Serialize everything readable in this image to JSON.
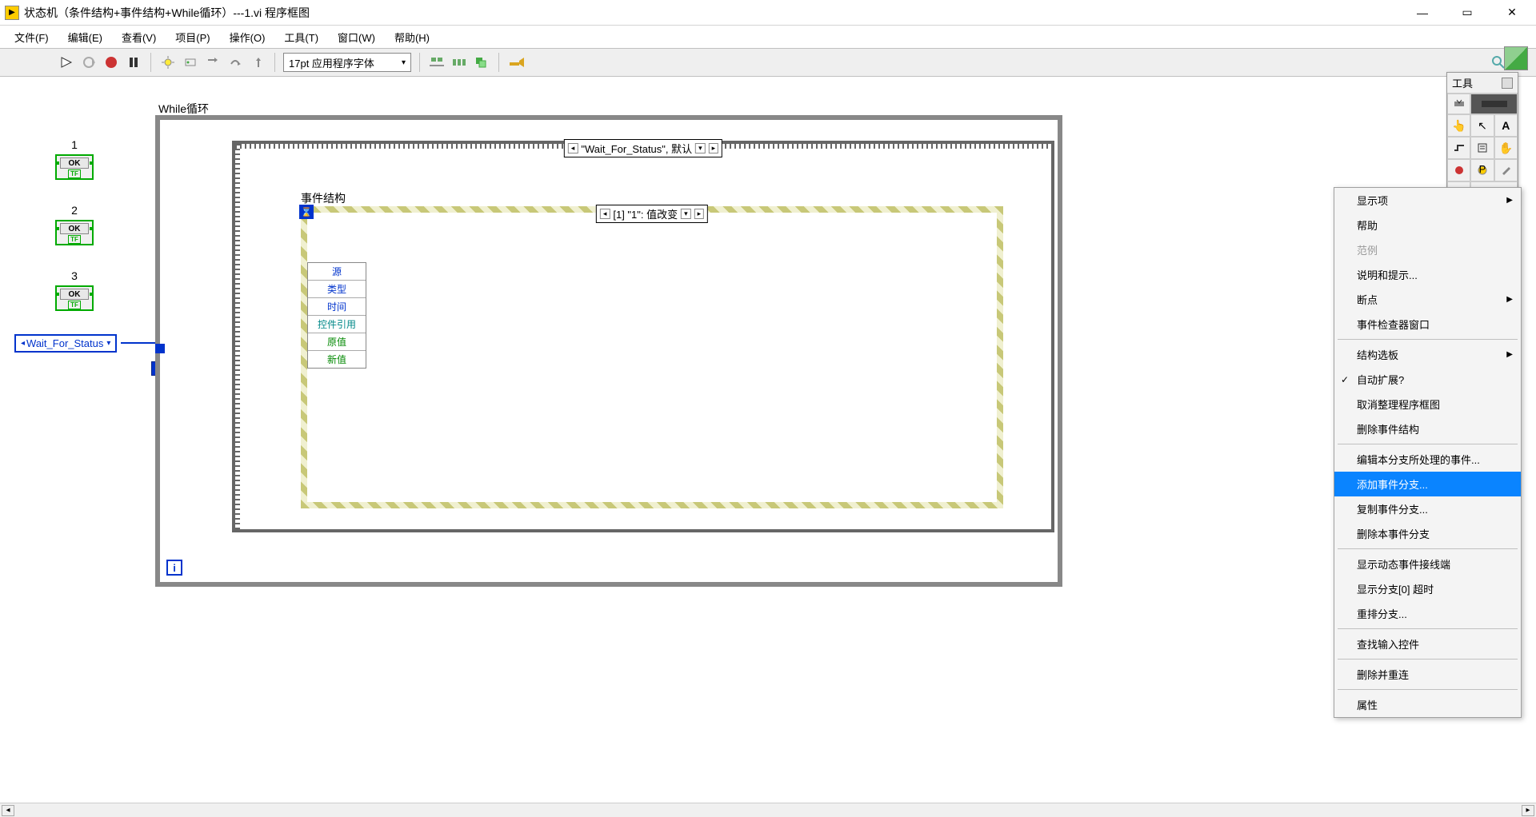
{
  "window": {
    "title": "状态机（条件结构+事件结构+While循环）---1.vi 程序框图",
    "min_btn": "—",
    "max_btn": "▭",
    "close_btn": "✕"
  },
  "menu": {
    "file": "文件(F)",
    "edit": "编辑(E)",
    "view": "查看(V)",
    "project": "项目(P)",
    "operate": "操作(O)",
    "tools": "工具(T)",
    "window": "窗口(W)",
    "help": "帮助(H)"
  },
  "toolbar": {
    "font_label": "17pt 应用程序字体"
  },
  "controls": {
    "items": [
      {
        "num": "1",
        "label": "OK"
      },
      {
        "num": "2",
        "label": "OK"
      },
      {
        "num": "3",
        "label": "OK"
      }
    ]
  },
  "enum_const": {
    "text": "Wait_For_Status"
  },
  "while_loop": {
    "label": "While循环",
    "i_label": "i"
  },
  "case_struct": {
    "selector_text": "\"Wait_For_Status\", 默认"
  },
  "event_struct": {
    "label": "事件结构",
    "timeout_glyph": "⌛",
    "selector_text": "[1] \"1\": 值改变",
    "data_rows": [
      {
        "text": "源",
        "cls": "row-blue"
      },
      {
        "text": "类型",
        "cls": "row-blue"
      },
      {
        "text": "时间",
        "cls": "row-blue"
      },
      {
        "text": "控件引用",
        "cls": "row-teal"
      },
      {
        "text": "原值",
        "cls": "row-green"
      },
      {
        "text": "新值",
        "cls": "row-green"
      }
    ]
  },
  "context_menu": {
    "items": [
      {
        "type": "item",
        "label": "显示项",
        "submenu": true
      },
      {
        "type": "item",
        "label": "帮助"
      },
      {
        "type": "item",
        "label": "范例",
        "disabled": true
      },
      {
        "type": "item",
        "label": "说明和提示..."
      },
      {
        "type": "item",
        "label": "断点",
        "submenu": true
      },
      {
        "type": "item",
        "label": "事件检查器窗口"
      },
      {
        "type": "sep"
      },
      {
        "type": "item",
        "label": "结构选板",
        "submenu": true
      },
      {
        "type": "item",
        "label": "自动扩展?",
        "checked": true
      },
      {
        "type": "item",
        "label": "取消整理程序框图"
      },
      {
        "type": "item",
        "label": "删除事件结构"
      },
      {
        "type": "sep"
      },
      {
        "type": "item",
        "label": "编辑本分支所处理的事件..."
      },
      {
        "type": "item",
        "label": "添加事件分支...",
        "highlighted": true
      },
      {
        "type": "item",
        "label": "复制事件分支..."
      },
      {
        "type": "item",
        "label": "删除本事件分支"
      },
      {
        "type": "sep"
      },
      {
        "type": "item",
        "label": "显示动态事件接线端"
      },
      {
        "type": "item",
        "label": "显示分支[0] 超时"
      },
      {
        "type": "item",
        "label": "重排分支..."
      },
      {
        "type": "sep"
      },
      {
        "type": "item",
        "label": "查找输入控件"
      },
      {
        "type": "sep"
      },
      {
        "type": "item",
        "label": "删除并重连"
      },
      {
        "type": "sep"
      },
      {
        "type": "item",
        "label": "属性"
      }
    ]
  },
  "tools_palette": {
    "title": "工具"
  }
}
